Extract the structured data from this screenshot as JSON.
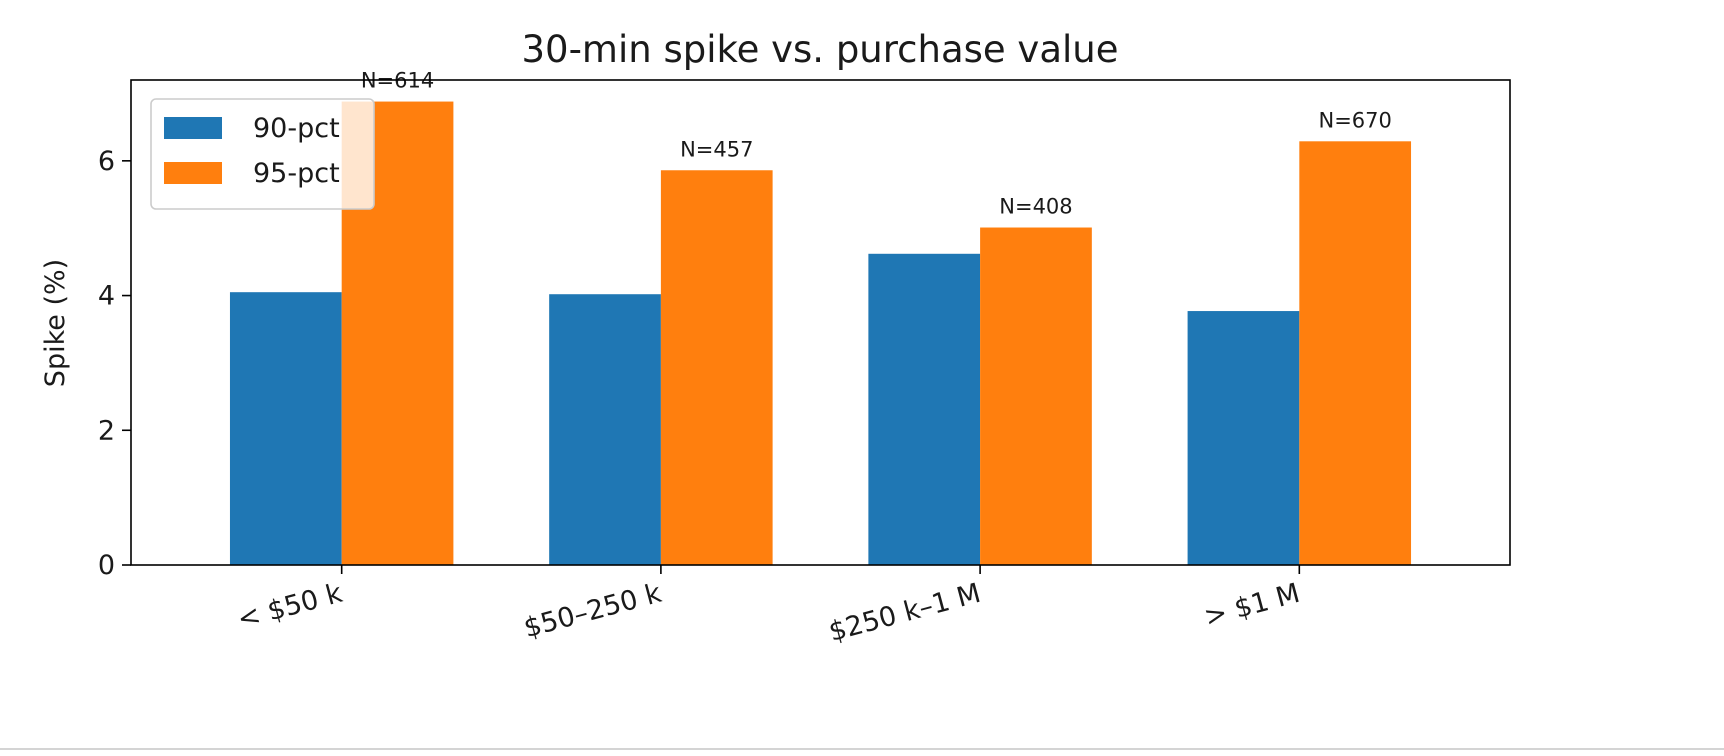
{
  "chart_data": {
    "type": "bar",
    "title": "30-min spike vs. purchase value",
    "xlabel": "",
    "ylabel": "Spike (%)",
    "categories": [
      "< $50 k",
      "$50–250 k",
      "$250 k–1 M",
      "> $1 M"
    ],
    "series": [
      {
        "name": "90-pct",
        "color": "#1f77b4",
        "values": [
          4.05,
          4.02,
          4.62,
          3.77
        ]
      },
      {
        "name": "95-pct",
        "color": "#ff7f0e",
        "values": [
          6.88,
          5.86,
          5.01,
          6.29
        ]
      }
    ],
    "annotations": [
      "N=614",
      "N=457",
      "N=408",
      "N=670"
    ],
    "ylim": [
      0,
      7.2
    ],
    "yticks": [
      0,
      2,
      4,
      6
    ],
    "grid": false,
    "legend_position": "upper-left",
    "xtick_rotation_deg": -15
  }
}
